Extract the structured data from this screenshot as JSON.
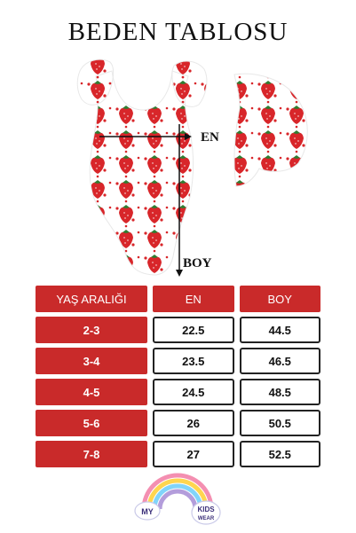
{
  "title": "BEDEN TABLOSU",
  "diagram": {
    "width_label": "EN",
    "length_label": "BOY"
  },
  "size_table": {
    "headers": [
      "YAŞ ARALIĞI",
      "EN",
      "BOY"
    ],
    "rows": [
      {
        "age": "2-3",
        "en": "22.5",
        "boy": "44.5"
      },
      {
        "age": "3-4",
        "en": "23.5",
        "boy": "46.5"
      },
      {
        "age": "4-5",
        "en": "24.5",
        "boy": "48.5"
      },
      {
        "age": "5-6",
        "en": "26",
        "boy": "50.5"
      },
      {
        "age": "7-8",
        "en": "27",
        "boy": "52.5"
      }
    ]
  },
  "logo": {
    "text_left": "MY",
    "text_right": "KIDS",
    "text_sub": "WEAR"
  },
  "colors": {
    "accent": "#c92a2a",
    "strawberry": "#d8262a",
    "leaf": "#2e7d32"
  }
}
